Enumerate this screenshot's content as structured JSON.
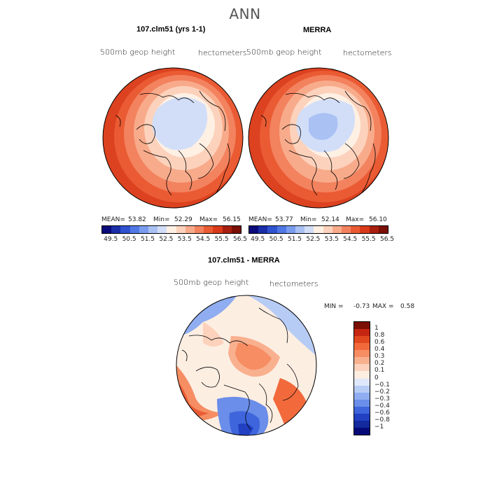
{
  "figure": {
    "title": "ANN"
  },
  "panel_left": {
    "title": "107.clm51 (yrs 1-1)",
    "field": "500mb geop height",
    "units": "hectometers",
    "mean_label": "MEAN=",
    "mean": "53.82",
    "min_label": "Min=",
    "min": "52.29",
    "max_label": "Max=",
    "max": "56.15"
  },
  "panel_right": {
    "title": "MERRA",
    "field": "500mb geop height",
    "units": "hectometers",
    "mean_label": "MEAN=",
    "mean": "53.77",
    "min_label": "Min=",
    "min": "52.14",
    "max_label": "Max=",
    "max": "56.10"
  },
  "panel_diff": {
    "title": "107.clm51 - MERRA",
    "field": "500mb geop height",
    "units": "hectometers",
    "min_label": "MIN =",
    "min": "-0.73",
    "max_label": "MAX =",
    "max": "0.58"
  },
  "colorbar_abs": {
    "ticks": [
      "49.5",
      "50.5",
      "51.5",
      "52.5",
      "53.5",
      "54.5",
      "55.5",
      "56.5"
    ],
    "colors": [
      "#0a0a7a",
      "#1a2ea8",
      "#2f52d1",
      "#4f78e6",
      "#7a9cef",
      "#a9c1f3",
      "#d2def8",
      "#fff0e4",
      "#fcd2bc",
      "#f8ab8b",
      "#f3825f",
      "#ea5b33",
      "#d93a1a",
      "#a81e0f",
      "#7a0f05"
    ]
  },
  "colorbar_diff": {
    "ticks": [
      "1",
      "0.8",
      "0.6",
      "0.4",
      "0.3",
      "0.2",
      "0.1",
      "0",
      "−0.1",
      "−0.2",
      "−0.3",
      "−0.4",
      "−0.6",
      "−0.8",
      "−1"
    ],
    "colors": [
      "#7a0f05",
      "#c52611",
      "#e2481f",
      "#f26a3c",
      "#f68d63",
      "#f9b08e",
      "#fcd2bc",
      "#fdeee2",
      "#dfe8fb",
      "#b7ccf5",
      "#8fadf0",
      "#6a8ee9",
      "#3f65dc",
      "#2140c2",
      "#122a9e",
      "#050a78"
    ]
  }
}
